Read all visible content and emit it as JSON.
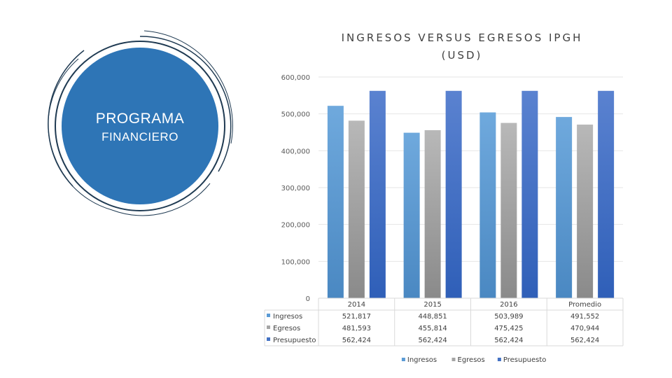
{
  "program": {
    "line1": "PROGRAMA",
    "line2": "FINANCIERO"
  },
  "chart_data": {
    "type": "bar",
    "title_lines": [
      "INGRESOS VERSUS EGRESOS IPGH",
      "(USD)"
    ],
    "categories": [
      "2014",
      "2015",
      "2016",
      "Promedio"
    ],
    "series": [
      {
        "name": "Ingresos",
        "values": [
          521817,
          448851,
          503989,
          491552
        ],
        "labels": [
          "521,817",
          "448,851",
          "503,989",
          "491,552"
        ],
        "color": "#5b9bd5"
      },
      {
        "name": "Egresos",
        "values": [
          481593,
          455814,
          475425,
          470944
        ],
        "labels": [
          "481,593",
          "455,814",
          "475,425",
          "470,944"
        ],
        "color": "#a5a5a5"
      },
      {
        "name": "Presupuesto",
        "values": [
          562424,
          562424,
          562424,
          562424
        ],
        "labels": [
          "562,424",
          "562,424",
          "562,424",
          "562,424"
        ],
        "color": "#4472c4"
      }
    ],
    "y_ticks": [
      0,
      100000,
      200000,
      300000,
      400000,
      500000,
      600000
    ],
    "y_tick_labels": [
      "0",
      "100,000",
      "200,000",
      "300,000",
      "400,000",
      "500,000",
      "600,000"
    ],
    "ylim": [
      0,
      600000
    ],
    "grid": true,
    "legend": "bottom",
    "data_table": true,
    "xlabel": "",
    "ylabel": ""
  },
  "colors": {
    "accent_circle": "#2e75b6",
    "ring": "#1f3a52"
  }
}
